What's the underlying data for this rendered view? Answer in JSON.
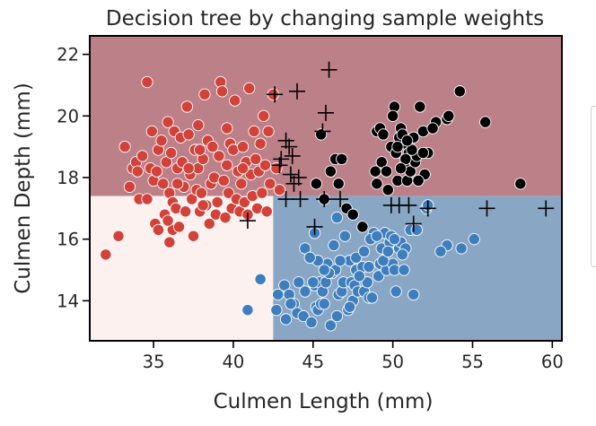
{
  "chart_data": {
    "type": "scatter",
    "title": "Decision tree by changing sample weights",
    "xlabel": "Culmen Length (mm)",
    "ylabel": "Culmen Depth (mm)",
    "xlim": [
      31,
      60.6
    ],
    "ylim": [
      12.7,
      22.6
    ],
    "xticks": [
      35,
      40,
      45,
      50,
      55,
      60
    ],
    "yticks": [
      14,
      16,
      18,
      20,
      22
    ],
    "xtick_labels": [
      "35",
      "40",
      "45",
      "50",
      "55",
      "60"
    ],
    "ytick_labels": [
      "14",
      "16",
      "18",
      "20",
      "22"
    ],
    "legend": "right (partially visible, entries cut off)",
    "grid": false,
    "colors": {
      "region_top": "#bc8088",
      "region_bottom_left": "#fcf1ee",
      "region_bottom_right": "#89a6c4",
      "class_red": "#d2423a",
      "class_black": "#000000",
      "class_blue": "#3f7ebd",
      "point_edge": "#ffffff",
      "misclassified_marker": "#000000"
    },
    "decision_regions": [
      {
        "name": "top",
        "x_range": [
          31,
          60.6
        ],
        "y_range": [
          17.4,
          22.6
        ],
        "color": "#bc8088"
      },
      {
        "name": "bottom-left",
        "x_range": [
          31,
          42.5
        ],
        "y_range": [
          12.7,
          17.4
        ],
        "color": "#fcf1ee"
      },
      {
        "name": "bottom-right",
        "x_range": [
          42.5,
          60.6
        ],
        "y_range": [
          12.7,
          17.4
        ],
        "color": "#89a6c4"
      }
    ],
    "series": [
      {
        "color": "#d2423a",
        "points": [
          [
            32,
            15.5
          ],
          [
            32.8,
            16.1
          ],
          [
            33.2,
            19
          ],
          [
            33.5,
            17.7
          ],
          [
            33.7,
            18.3
          ],
          [
            33.9,
            18.5
          ],
          [
            34,
            18.2
          ],
          [
            34.1,
            17.3
          ],
          [
            34.3,
            18.7
          ],
          [
            34.6,
            21.1
          ],
          [
            34.6,
            17.3
          ],
          [
            34.8,
            18.3
          ],
          [
            34.9,
            19.5
          ],
          [
            35,
            17.9
          ],
          [
            35.1,
            16.5
          ],
          [
            35.2,
            18.2
          ],
          [
            35.3,
            18.9
          ],
          [
            35.3,
            16.3
          ],
          [
            35.5,
            19.2
          ],
          [
            35.6,
            17.8
          ],
          [
            35.7,
            16.8
          ],
          [
            35.8,
            18.5
          ],
          [
            35.9,
            19.8
          ],
          [
            36,
            17.5
          ],
          [
            36,
            15.9
          ],
          [
            36.1,
            18.8
          ],
          [
            36.2,
            17.2
          ],
          [
            36.2,
            16.3
          ],
          [
            36.3,
            19.5
          ],
          [
            36.4,
            17
          ],
          [
            36.5,
            18.3
          ],
          [
            36.6,
            16.4
          ],
          [
            36.7,
            19.3
          ],
          [
            36.8,
            18.5
          ],
          [
            36.9,
            17.7
          ],
          [
            37,
            16.9
          ],
          [
            37.1,
            20.3
          ],
          [
            37.2,
            19.4
          ],
          [
            37.3,
            18.1
          ],
          [
            37.4,
            17.3
          ],
          [
            37.5,
            16.1
          ],
          [
            37.6,
            18.9
          ],
          [
            37.7,
            17.6
          ],
          [
            37.8,
            19.7
          ],
          [
            37.8,
            18.3
          ],
          [
            37.9,
            16.9
          ],
          [
            38,
            17.5
          ],
          [
            38.1,
            18.6
          ],
          [
            38.2,
            20.7
          ],
          [
            38.3,
            17.1
          ],
          [
            38.4,
            19.2
          ],
          [
            38.5,
            16.5
          ],
          [
            38.6,
            17.8
          ],
          [
            38.7,
            19
          ],
          [
            38.8,
            18
          ],
          [
            38.9,
            16.8
          ],
          [
            39,
            17.2
          ],
          [
            39.1,
            18.7
          ],
          [
            39.2,
            21.1
          ],
          [
            39.3,
            20.8
          ],
          [
            39.4,
            17.9
          ],
          [
            39.5,
            16.7
          ],
          [
            39.6,
            18.4
          ],
          [
            39.7,
            17.5
          ],
          [
            39.8,
            19.1
          ],
          [
            39.9,
            17
          ],
          [
            40,
            18.9
          ],
          [
            40.1,
            20.5
          ],
          [
            40.2,
            17.3
          ],
          [
            40.3,
            18.2
          ],
          [
            40.4,
            16.9
          ],
          [
            40.5,
            17.8
          ],
          [
            40.6,
            19
          ],
          [
            40.7,
            17.2
          ],
          [
            40.8,
            18.5
          ],
          [
            40.9,
            16.8
          ],
          [
            41,
            20.9
          ],
          [
            41.1,
            18.1
          ],
          [
            41.2,
            17.4
          ],
          [
            41.3,
            19.5
          ],
          [
            41.4,
            18.6
          ],
          [
            41.5,
            17
          ],
          [
            41.6,
            18.2
          ],
          [
            41.7,
            19.1
          ],
          [
            41.8,
            17.5
          ],
          [
            41.9,
            20
          ],
          [
            42,
            18.4
          ],
          [
            42.1,
            16.9
          ],
          [
            42.2,
            19.5
          ],
          [
            42.3,
            17.8
          ],
          [
            42.5,
            20.7
          ],
          [
            42.7,
            18.3
          ],
          [
            42.9,
            17.6
          ],
          [
            38.1,
            17.1
          ],
          [
            36.5,
            17.8
          ],
          [
            37.9,
            18.9
          ],
          [
            35.9,
            16.6
          ],
          [
            39.6,
            19.6
          ],
          [
            40.6,
            18.3
          ],
          [
            37.2,
            18.3
          ]
        ]
      },
      {
        "color": "#000000",
        "points": [
          [
            45.2,
            17.8
          ],
          [
            45.5,
            19.4
          ],
          [
            45.7,
            17.3
          ],
          [
            46.1,
            18.2
          ],
          [
            46.4,
            18.6
          ],
          [
            46.6,
            17.8
          ],
          [
            46.8,
            18.6
          ],
          [
            47.1,
            17
          ],
          [
            47.5,
            16.8
          ],
          [
            48.1,
            16.4
          ],
          [
            49,
            19.5
          ],
          [
            49.3,
            18.5
          ],
          [
            49.6,
            18.2
          ],
          [
            49.9,
            19
          ],
          [
            50.1,
            20.3
          ],
          [
            50.2,
            18.8
          ],
          [
            50.3,
            17.9
          ],
          [
            50.5,
            19.6
          ],
          [
            50.7,
            18.4
          ],
          [
            50.8,
            19.1
          ],
          [
            50.9,
            17.9
          ],
          [
            51,
            18.8
          ],
          [
            51.1,
            18.2
          ],
          [
            51.3,
            19.3
          ],
          [
            51.4,
            18.5
          ],
          [
            51.5,
            18.7
          ],
          [
            51.7,
            20.3
          ],
          [
            51.9,
            19.5
          ],
          [
            52,
            18.1
          ],
          [
            52.2,
            18.8
          ],
          [
            52.7,
            19.8
          ],
          [
            53.4,
            19.9
          ],
          [
            53.5,
            20
          ],
          [
            54.2,
            20.8
          ],
          [
            55.8,
            19.8
          ],
          [
            58,
            17.8
          ],
          [
            49.2,
            19.6
          ],
          [
            50.4,
            19.3
          ],
          [
            51.2,
            18.9
          ],
          [
            50.6,
            19.4
          ],
          [
            49.7,
            17.6
          ],
          [
            50.8,
            18.6
          ],
          [
            50,
            20
          ],
          [
            52.5,
            19.6
          ],
          [
            51.6,
            17.9
          ],
          [
            49.4,
            19.4
          ],
          [
            50.3,
            19
          ],
          [
            50.9,
            19.2
          ],
          [
            48.9,
            18.2
          ],
          [
            49,
            17.8
          ],
          [
            51.9,
            18.8
          ],
          [
            50.5,
            18.3
          ]
        ]
      },
      {
        "color": "#3f7ebd",
        "points": [
          [
            40.9,
            13.7
          ],
          [
            41.7,
            14.7
          ],
          [
            42.7,
            13.7
          ],
          [
            43.2,
            14.5
          ],
          [
            43.3,
            13.4
          ],
          [
            43.5,
            14.2
          ],
          [
            43.8,
            13.9
          ],
          [
            44,
            13.6
          ],
          [
            44.1,
            14.6
          ],
          [
            44.4,
            13.5
          ],
          [
            44.5,
            14.3
          ],
          [
            44.9,
            13.3
          ],
          [
            45.1,
            14.5
          ],
          [
            45.2,
            13.8
          ],
          [
            45.3,
            13.7
          ],
          [
            45.4,
            14.6
          ],
          [
            45.5,
            13.9
          ],
          [
            45.6,
            14.3
          ],
          [
            45.7,
            13.9
          ],
          [
            45.8,
            14.6
          ],
          [
            45.9,
            15.2
          ],
          [
            46.1,
            13.2
          ],
          [
            46.2,
            14.9
          ],
          [
            46.4,
            15
          ],
          [
            46.5,
            13.5
          ],
          [
            46.6,
            14.2
          ],
          [
            46.8,
            14.3
          ],
          [
            46.9,
            14.6
          ],
          [
            47.2,
            13.7
          ],
          [
            47.3,
            15.3
          ],
          [
            47.4,
            14.6
          ],
          [
            47.5,
            14
          ],
          [
            47.6,
            14.5
          ],
          [
            47.7,
            15
          ],
          [
            47.8,
            14.3
          ],
          [
            48.1,
            15.1
          ],
          [
            48.2,
            14.3
          ],
          [
            48.4,
            14.6
          ],
          [
            48.5,
            14.1
          ],
          [
            48.7,
            14.1
          ],
          [
            48.8,
            16.2
          ],
          [
            49.1,
            14.8
          ],
          [
            49.2,
            15.2
          ],
          [
            49.3,
            15.7
          ],
          [
            49.5,
            16.2
          ],
          [
            49.6,
            15
          ],
          [
            49.8,
            15.9
          ],
          [
            49.9,
            16.1
          ],
          [
            50,
            15.2
          ],
          [
            50.1,
            15
          ],
          [
            50.2,
            14.3
          ],
          [
            50.4,
            15.7
          ],
          [
            50.5,
            15.9
          ],
          [
            50.7,
            15
          ],
          [
            50.8,
            15.7
          ],
          [
            51.1,
            16.3
          ],
          [
            51.3,
            14.2
          ],
          [
            52.1,
            17
          ],
          [
            52.2,
            17.1
          ],
          [
            53.4,
            15.8
          ],
          [
            54.3,
            15.7
          ],
          [
            55.1,
            16
          ],
          [
            44.5,
            15.7
          ],
          [
            45.1,
            16.2
          ],
          [
            46.3,
            15.8
          ],
          [
            47,
            16.1
          ],
          [
            47.7,
            15.4
          ],
          [
            48.6,
            16
          ],
          [
            49.4,
            15.3
          ],
          [
            43.6,
            13.9
          ],
          [
            45.3,
            15.3
          ],
          [
            46.7,
            15.3
          ],
          [
            48.2,
            15.6
          ],
          [
            47.3,
            13.8
          ],
          [
            49,
            16.1
          ],
          [
            46,
            14.9
          ],
          [
            44.8,
            15.4
          ],
          [
            47.9,
            14.8
          ],
          [
            49.7,
            15.6
          ],
          [
            42.8,
            14.2
          ],
          [
            48.5,
            15.1
          ],
          [
            50.1,
            16
          ],
          [
            45,
            14.6
          ],
          [
            46.5,
            16.7
          ],
          [
            51.5,
            16.3
          ],
          [
            53,
            15.6
          ],
          [
            50.6,
            15.5
          ],
          [
            45.7,
            15
          ]
        ]
      }
    ],
    "highlighted_points": [
      [
        42.6,
        20.7
      ],
      [
        43.5,
        19
      ],
      [
        43.6,
        18.1
      ],
      [
        43.8,
        17.8
      ],
      [
        42.9,
        18.4
      ],
      [
        44,
        20.8
      ],
      [
        43.3,
        19.2
      ],
      [
        43,
        18.6
      ],
      [
        43.7,
        18.7
      ],
      [
        44.1,
        18
      ],
      [
        46,
        21.5
      ],
      [
        45.8,
        20.1
      ],
      [
        45.6,
        19.5
      ],
      [
        43.3,
        17.3
      ],
      [
        45.7,
        17.3
      ],
      [
        46.7,
        17.3
      ],
      [
        49.9,
        17.1
      ],
      [
        51,
        17.1
      ],
      [
        52.2,
        17
      ],
      [
        55.9,
        17
      ],
      [
        59.6,
        17
      ],
      [
        44.2,
        17.3
      ],
      [
        50.4,
        17.1
      ],
      [
        51.3,
        16.5
      ],
      [
        45.1,
        16.4
      ],
      [
        40.9,
        16.6
      ]
    ]
  }
}
